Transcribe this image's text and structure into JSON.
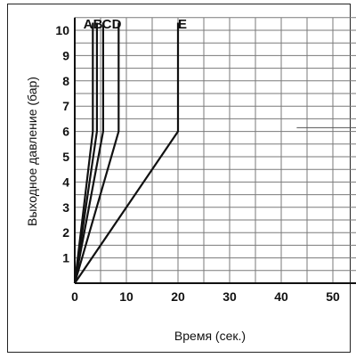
{
  "chart_data": {
    "type": "line",
    "xlabel": "Время (сек.)",
    "ylabel": "Выходное давление (бар)",
    "xlim": [
      0,
      55
    ],
    "ylim": [
      0,
      10.5
    ],
    "x_ticks": [
      0,
      10,
      20,
      30,
      40,
      50
    ],
    "y_ticks": [
      1,
      2,
      3,
      4,
      5,
      6,
      7,
      8,
      9,
      10
    ],
    "grid": true,
    "series": [
      {
        "name": "A",
        "points": [
          [
            0,
            0
          ],
          [
            3.5,
            6
          ],
          [
            3.5,
            10.3
          ]
        ]
      },
      {
        "name": "B",
        "points": [
          [
            0,
            0
          ],
          [
            4.3,
            6
          ],
          [
            4.3,
            10.3
          ]
        ]
      },
      {
        "name": "C",
        "points": [
          [
            0,
            0
          ],
          [
            5.5,
            6
          ],
          [
            5.5,
            10.3
          ]
        ]
      },
      {
        "name": "D",
        "points": [
          [
            0,
            0
          ],
          [
            8.5,
            6
          ],
          [
            8.5,
            10.3
          ]
        ]
      },
      {
        "name": "E",
        "points": [
          [
            0,
            0
          ],
          [
            20,
            6
          ],
          [
            20,
            10.3
          ]
        ]
      }
    ],
    "annotation_line": {
      "y": 6.15,
      "x": [
        43,
        55
      ]
    }
  }
}
